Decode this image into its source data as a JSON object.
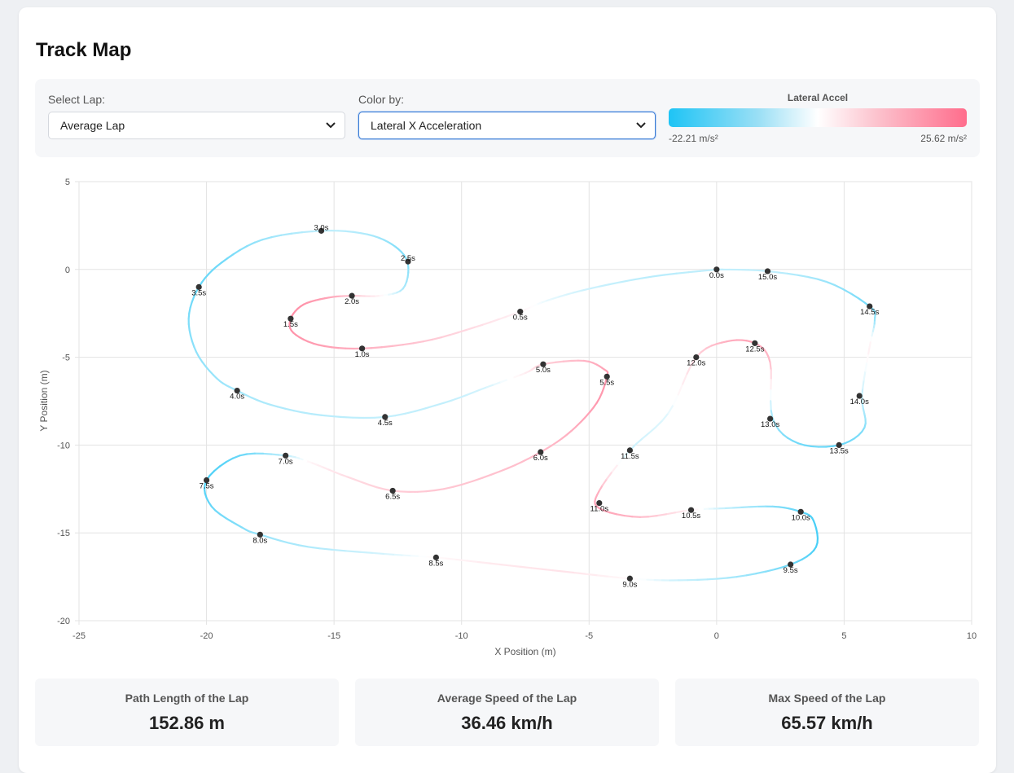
{
  "page": {
    "title": "Track Map"
  },
  "controls": {
    "lap_label": "Select Lap:",
    "lap_value": "Average Lap",
    "color_label": "Color by:",
    "color_value": "Lateral X Acceleration",
    "scale_title": "Lateral Accel",
    "scale_min": "-22.21 m/s²",
    "scale_max": "25.62 m/s²",
    "scale_colors": {
      "neg": "#1ec4f5",
      "mid": "#ffffff",
      "pos": "#ff6d8c"
    }
  },
  "stats": [
    {
      "label": "Path Length of the Lap",
      "value": "152.86 m"
    },
    {
      "label": "Average Speed of the Lap",
      "value": "36.46 km/h"
    },
    {
      "label": "Max Speed of the Lap",
      "value": "65.57 km/h"
    }
  ],
  "chart_data": {
    "type": "line",
    "xlabel": "X Position (m)",
    "ylabel": "Y Position (m)",
    "xlim": [
      -25,
      10
    ],
    "ylim": [
      -20,
      5
    ],
    "xticks": [
      -25,
      -20,
      -15,
      -10,
      -5,
      0,
      5,
      10
    ],
    "yticks": [
      -20,
      -15,
      -10,
      -5,
      0,
      5
    ],
    "grid": true,
    "color_scale": {
      "min": -22.21,
      "max": 25.62,
      "neg_color": "#1ec4f5",
      "pos_color": "#ff6d8c",
      "mid_color": "#ffffff"
    },
    "path": [
      {
        "x": 0.0,
        "y": 0.0,
        "a": -6
      },
      {
        "x": -2.5,
        "y": -0.4,
        "a": -7
      },
      {
        "x": -5.0,
        "y": -1.1,
        "a": -5
      },
      {
        "x": -6.7,
        "y": -1.8,
        "a": -2
      },
      {
        "x": -7.7,
        "y": -2.4,
        "a": 2
      },
      {
        "x": -9.5,
        "y": -3.3,
        "a": 6
      },
      {
        "x": -11.5,
        "y": -4.1,
        "a": 10
      },
      {
        "x": -13.9,
        "y": -4.5,
        "a": 14
      },
      {
        "x": -15.6,
        "y": -4.3,
        "a": 17
      },
      {
        "x": -16.6,
        "y": -3.6,
        "a": 19
      },
      {
        "x": -16.7,
        "y": -2.8,
        "a": 20
      },
      {
        "x": -16.2,
        "y": -2.0,
        "a": 19
      },
      {
        "x": -15.2,
        "y": -1.6,
        "a": 16
      },
      {
        "x": -14.3,
        "y": -1.5,
        "a": 10
      },
      {
        "x": -13.2,
        "y": -1.5,
        "a": 2
      },
      {
        "x": -12.3,
        "y": -1.1,
        "a": -8
      },
      {
        "x": -12.1,
        "y": 0.3,
        "a": -12
      },
      {
        "x": -12.6,
        "y": 1.3,
        "a": -12
      },
      {
        "x": -13.7,
        "y": 2.0,
        "a": -8
      },
      {
        "x": -15.5,
        "y": 2.2,
        "a": -6
      },
      {
        "x": -17.8,
        "y": 1.7,
        "a": -10
      },
      {
        "x": -19.4,
        "y": 0.4,
        "a": -14
      },
      {
        "x": -20.3,
        "y": -1.0,
        "a": -15
      },
      {
        "x": -20.7,
        "y": -2.8,
        "a": -13
      },
      {
        "x": -20.4,
        "y": -4.7,
        "a": -11
      },
      {
        "x": -19.6,
        "y": -6.2,
        "a": -10
      },
      {
        "x": -18.8,
        "y": -6.9,
        "a": -9
      },
      {
        "x": -17.5,
        "y": -7.7,
        "a": -8
      },
      {
        "x": -15.5,
        "y": -8.3,
        "a": -7
      },
      {
        "x": -13.0,
        "y": -8.4,
        "a": -6
      },
      {
        "x": -10.7,
        "y": -7.6,
        "a": -6
      },
      {
        "x": -9.0,
        "y": -6.7,
        "a": -4
      },
      {
        "x": -7.5,
        "y": -5.9,
        "a": 3
      },
      {
        "x": -6.8,
        "y": -5.4,
        "a": 8
      },
      {
        "x": -5.2,
        "y": -5.2,
        "a": 13
      },
      {
        "x": -4.4,
        "y": -5.7,
        "a": 16
      },
      {
        "x": -4.3,
        "y": -6.1,
        "a": 18
      },
      {
        "x": -4.7,
        "y": -7.6,
        "a": 18
      },
      {
        "x": -5.7,
        "y": -9.2,
        "a": 14
      },
      {
        "x": -6.9,
        "y": -10.4,
        "a": 12
      },
      {
        "x": -8.5,
        "y": -11.5,
        "a": 11
      },
      {
        "x": -10.7,
        "y": -12.5,
        "a": 10
      },
      {
        "x": -12.7,
        "y": -12.6,
        "a": 9
      },
      {
        "x": -14.5,
        "y": -11.8,
        "a": 6
      },
      {
        "x": -15.9,
        "y": -11.0,
        "a": 2
      },
      {
        "x": -16.9,
        "y": -10.6,
        "a": -6
      },
      {
        "x": -18.7,
        "y": -10.6,
        "a": -15
      },
      {
        "x": -20.0,
        "y": -12.0,
        "a": -18
      },
      {
        "x": -19.8,
        "y": -13.5,
        "a": -15
      },
      {
        "x": -18.6,
        "y": -14.7,
        "a": -12
      },
      {
        "x": -17.9,
        "y": -15.1,
        "a": -10
      },
      {
        "x": -16.0,
        "y": -15.8,
        "a": -8
      },
      {
        "x": -13.0,
        "y": -16.2,
        "a": -4
      },
      {
        "x": -11.0,
        "y": -16.4,
        "a": 1
      },
      {
        "x": -8.5,
        "y": -16.8,
        "a": 4
      },
      {
        "x": -6.0,
        "y": -17.2,
        "a": 5
      },
      {
        "x": -3.4,
        "y": -17.6,
        "a": 1
      },
      {
        "x": -1.5,
        "y": -17.7,
        "a": -5
      },
      {
        "x": 0.8,
        "y": -17.5,
        "a": -9
      },
      {
        "x": 2.9,
        "y": -16.8,
        "a": -14
      },
      {
        "x": 3.9,
        "y": -15.8,
        "a": -18
      },
      {
        "x": 3.8,
        "y": -14.3,
        "a": -18
      },
      {
        "x": 3.3,
        "y": -13.8,
        "a": -16
      },
      {
        "x": 2.2,
        "y": -13.5,
        "a": -12
      },
      {
        "x": 0.3,
        "y": -13.6,
        "a": -6
      },
      {
        "x": -1.0,
        "y": -13.7,
        "a": 2
      },
      {
        "x": -3.0,
        "y": -14.1,
        "a": 12
      },
      {
        "x": -4.6,
        "y": -13.6,
        "a": 17
      },
      {
        "x": -4.6,
        "y": -12.6,
        "a": 14
      },
      {
        "x": -3.4,
        "y": -10.3,
        "a": -5
      },
      {
        "x": -1.9,
        "y": -8.2,
        "a": -3
      },
      {
        "x": -0.8,
        "y": -5.0,
        "a": 8
      },
      {
        "x": 0.4,
        "y": -4.1,
        "a": 14
      },
      {
        "x": 1.5,
        "y": -4.2,
        "a": 16
      },
      {
        "x": 2.1,
        "y": -5.3,
        "a": 12
      },
      {
        "x": 2.2,
        "y": -8.5,
        "a": -10
      },
      {
        "x": 3.2,
        "y": -9.9,
        "a": -14
      },
      {
        "x": 4.8,
        "y": -10.0,
        "a": -15
      },
      {
        "x": 5.8,
        "y": -9.0,
        "a": -12
      },
      {
        "x": 5.7,
        "y": -7.2,
        "a": -6
      },
      {
        "x": 6.0,
        "y": -4.4,
        "a": 3
      },
      {
        "x": 6.2,
        "y": -2.9,
        "a": -10
      },
      {
        "x": 6.0,
        "y": -2.1,
        "a": -14
      },
      {
        "x": 4.3,
        "y": -0.7,
        "a": -10
      },
      {
        "x": 2.0,
        "y": -0.1,
        "a": -6
      },
      {
        "x": 0.0,
        "y": 0.0,
        "a": -6
      }
    ],
    "time_markers": [
      {
        "label": "0.0s",
        "x": 0.0,
        "y": 0.0
      },
      {
        "label": "0.5s",
        "x": -7.7,
        "y": -2.4
      },
      {
        "label": "1.0s",
        "x": -13.9,
        "y": -4.5
      },
      {
        "label": "1.5s",
        "x": -16.7,
        "y": -2.8
      },
      {
        "label": "2.0s",
        "x": -14.3,
        "y": -1.5
      },
      {
        "label": "2.5s",
        "x": -12.1,
        "y": 0.45
      },
      {
        "label": "3.0s",
        "x": -15.5,
        "y": 2.2
      },
      {
        "label": "3.5s",
        "x": -20.3,
        "y": -1.0
      },
      {
        "label": "4.0s",
        "x": -18.8,
        "y": -6.9
      },
      {
        "label": "4.5s",
        "x": -13.0,
        "y": -8.4
      },
      {
        "label": "5.0s",
        "x": -6.8,
        "y": -5.4
      },
      {
        "label": "5.5s",
        "x": -4.3,
        "y": -6.1
      },
      {
        "label": "6.0s",
        "x": -6.9,
        "y": -10.4
      },
      {
        "label": "6.5s",
        "x": -12.7,
        "y": -12.6
      },
      {
        "label": "7.0s",
        "x": -16.9,
        "y": -10.6
      },
      {
        "label": "7.5s",
        "x": -20.0,
        "y": -12.0
      },
      {
        "label": "8.0s",
        "x": -17.9,
        "y": -15.1
      },
      {
        "label": "8.5s",
        "x": -11.0,
        "y": -16.4
      },
      {
        "label": "9.0s",
        "x": -3.4,
        "y": -17.6
      },
      {
        "label": "9.5s",
        "x": 2.9,
        "y": -16.8
      },
      {
        "label": "10.0s",
        "x": 3.3,
        "y": -13.8
      },
      {
        "label": "10.5s",
        "x": -1.0,
        "y": -13.7
      },
      {
        "label": "11.0s",
        "x": -4.6,
        "y": -13.3
      },
      {
        "label": "11.5s",
        "x": -3.4,
        "y": -10.3
      },
      {
        "label": "12.0s",
        "x": -0.8,
        "y": -5.0
      },
      {
        "label": "12.5s",
        "x": 1.5,
        "y": -4.2
      },
      {
        "label": "13.0s",
        "x": 2.1,
        "y": -8.5
      },
      {
        "label": "13.5s",
        "x": 4.8,
        "y": -10.0
      },
      {
        "label": "14.0s",
        "x": 5.6,
        "y": -7.2
      },
      {
        "label": "14.5s",
        "x": 6.0,
        "y": -2.1
      },
      {
        "label": "15.0s",
        "x": 2.0,
        "y": -0.1
      }
    ]
  }
}
